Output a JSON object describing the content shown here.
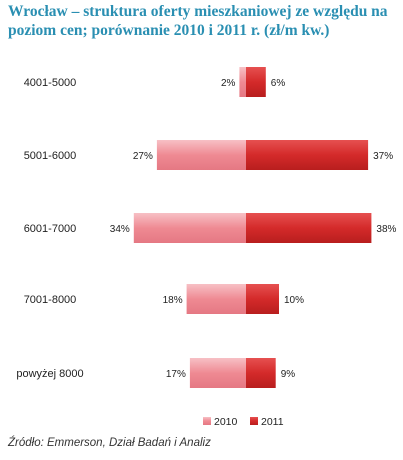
{
  "title": "Wrocław – struktura oferty mieszkaniowej ze względu na poziom cen; porównanie 2010 i 2011 r. (zł/m kw.)",
  "source": "Źródło: Emmerson, Dział Badań i Analiz",
  "chart_data": {
    "type": "bar",
    "orientation": "horizontal-diverging",
    "categories": [
      "4001-5000",
      "5001-6000",
      "6001-7000",
      "7001-8000",
      "powyżej 8000"
    ],
    "series": [
      {
        "name": "2010",
        "values": [
          2,
          27,
          34,
          18,
          17
        ],
        "labels": [
          "2%",
          "27%",
          "34%",
          "18%",
          "17%"
        ],
        "color": "#ef8a93",
        "direction": "left"
      },
      {
        "name": "2011",
        "values": [
          6,
          37,
          38,
          10,
          9
        ],
        "labels": [
          "6%",
          "37%",
          "38%",
          "10%",
          "9%"
        ],
        "color": "#d42a2a",
        "direction": "right"
      }
    ],
    "legend_position": "bottom",
    "grid": false
  }
}
